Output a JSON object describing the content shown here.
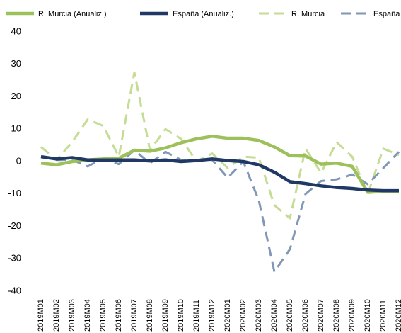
{
  "chart_data": {
    "type": "line",
    "categories": [
      "2019M01",
      "2019M02",
      "2019M03",
      "2019M04",
      "2019M05",
      "2019M06",
      "2019M07",
      "2019M08",
      "2019M09",
      "2019M10",
      "2019M11",
      "2019M12",
      "2020M01",
      "2020M02",
      "2020M03",
      "2020M04",
      "2020M05",
      "2020M06",
      "2020M07",
      "2020M08",
      "2020M09",
      "2020M10",
      "2020M11",
      "2020M12"
    ],
    "series": [
      {
        "name": "R. Murcia  (Anualiz.)",
        "color": "#9dc15a",
        "dashed": false,
        "values": [
          -0.5,
          -1,
          0,
          0.5,
          0.8,
          1,
          3.5,
          3.2,
          4.2,
          5.8,
          7,
          7.8,
          7.2,
          7.2,
          6.5,
          4.5,
          1.8,
          1.7,
          -0.8,
          -0.5,
          -1.5,
          -9.5,
          -9.2,
          -9.2
        ]
      },
      {
        "name": "España (Anualiz.)",
        "color": "#1f3864",
        "dashed": false,
        "values": [
          1.5,
          0.8,
          1.2,
          0.5,
          0.5,
          0.5,
          0.5,
          0.2,
          0.5,
          0,
          0.3,
          0.8,
          0.3,
          0,
          -1,
          -3.3,
          -6.2,
          -6.8,
          -7.5,
          -8,
          -8.3,
          -8.8,
          -9,
          -9
        ]
      },
      {
        "name": "R. Murcia",
        "color": "#c5dc94",
        "dashed": true,
        "values": [
          4.5,
          0.5,
          6,
          13,
          11,
          1.5,
          27.5,
          3.5,
          10,
          7,
          0,
          2.5,
          -2,
          1.5,
          1.2,
          -13.5,
          -17.5,
          4,
          -3.5,
          6,
          1.5,
          -10,
          4,
          2
        ]
      },
      {
        "name": "España",
        "color": "#8297b5",
        "dashed": true,
        "values": [
          1.5,
          0.5,
          0.5,
          -1.5,
          1,
          -0.8,
          3.5,
          -0.5,
          3,
          0.5,
          0.5,
          0.5,
          -5,
          0,
          -12,
          -34,
          -27,
          -10,
          -6,
          -5.5,
          -4,
          -7,
          -2,
          3
        ]
      }
    ],
    "ylim": [
      -40,
      40
    ],
    "yticks": [
      -40,
      -30,
      -20,
      -10,
      0,
      10,
      20,
      30,
      40
    ],
    "grid": false
  }
}
